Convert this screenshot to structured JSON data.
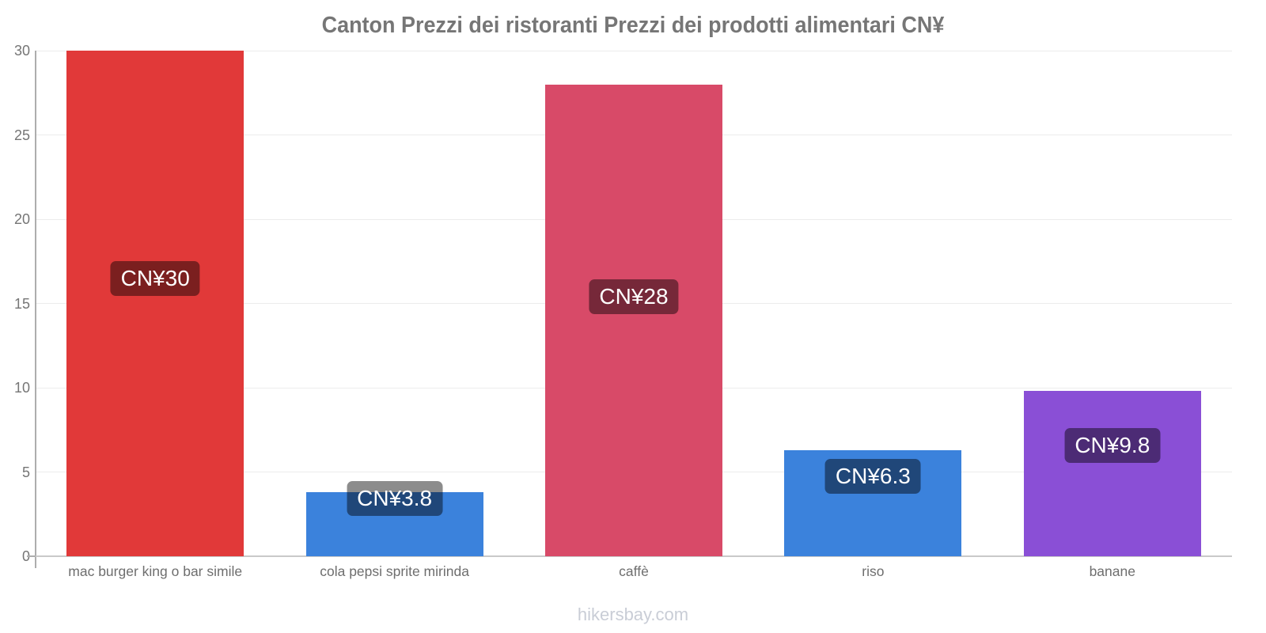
{
  "title": "Canton Prezzi dei ristoranti Prezzi dei prodotti alimentari CN¥",
  "watermark": "hikersbay.com",
  "chart_data": {
    "type": "bar",
    "title": "Canton Prezzi dei ristoranti Prezzi dei prodotti alimentari CN¥",
    "categories": [
      "mac burger king o bar simile",
      "cola pepsi sprite mirinda",
      "caffè",
      "riso",
      "banane"
    ],
    "values": [
      30,
      3.8,
      28,
      6.3,
      9.8
    ],
    "value_labels": [
      "CN¥30",
      "CN¥3.8",
      "CN¥28",
      "CN¥6.3",
      "CN¥9.8"
    ],
    "bar_colors": [
      "#e13939",
      "#3b82dc",
      "#d84a68",
      "#3b82dc",
      "#8a4fd6"
    ],
    "currency": "CN¥",
    "xlabel": "",
    "ylabel": "",
    "ylim": [
      0,
      30
    ],
    "yticks": [
      0,
      5,
      10,
      15,
      20,
      25,
      30
    ],
    "grid": "horizontal",
    "legend": "none",
    "badge_bg": "rgba(0,0,0,0.45)",
    "colors": {
      "title_text": "#767676",
      "tick_text": "#757575",
      "category_text": "#6e6e6e",
      "gridline": "#ececec",
      "baseline": "#c9c9c9",
      "axis": "#adadad",
      "watermark_text": "#c9cdd6",
      "badge_text": "#ffffff"
    }
  }
}
